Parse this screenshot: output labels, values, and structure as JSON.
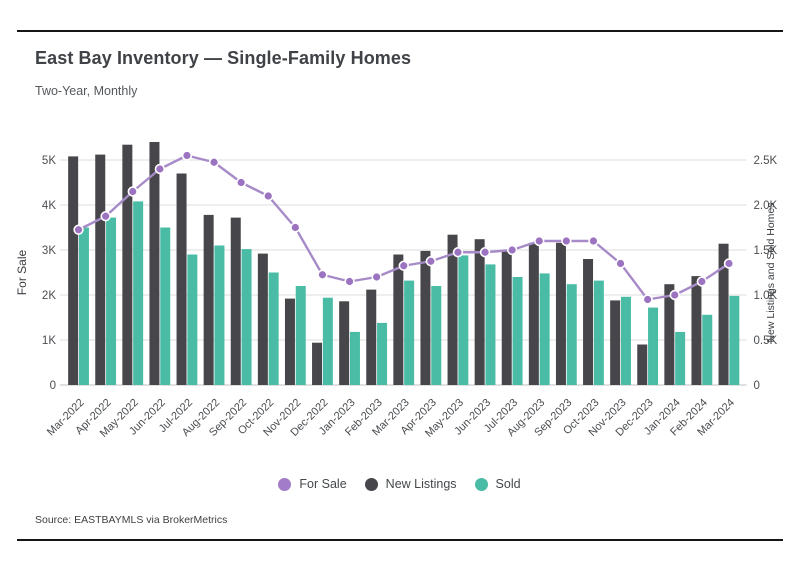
{
  "page": {
    "title": "East Bay Inventory — Single-Family Homes",
    "subtitle": "Two-Year, Monthly",
    "source": "Source:  EASTBAYMLS via BrokerMetrics"
  },
  "legend": {
    "items": [
      {
        "label": "For Sale",
        "color": "#a27cc9"
      },
      {
        "label": "New Listings",
        "color": "#47474b"
      },
      {
        "label": "Sold",
        "color": "#4abca6"
      }
    ]
  },
  "chart_data": {
    "type": "bar+line combo",
    "title": "East Bay Inventory — Single-Family Homes",
    "subtitle": "Two-Year, Monthly",
    "categories": [
      "Mar-2022",
      "Apr-2022",
      "May-2022",
      "Jun-2022",
      "Jul-2022",
      "Aug-2022",
      "Sep-2022",
      "Oct-2022",
      "Nov-2022",
      "Dec-2022",
      "Jan-2023",
      "Feb-2023",
      "Mar-2023",
      "Apr-2023",
      "May-2023",
      "Jun-2023",
      "Jul-2023",
      "Aug-2023",
      "Sep-2023",
      "Oct-2023",
      "Nov-2023",
      "Dec-2023",
      "Jan-2024",
      "Feb-2024",
      "Mar-2024"
    ],
    "series": [
      {
        "name": "For Sale",
        "type": "line",
        "axis": "left",
        "color_line": "#a78bc8",
        "color_marker": "#9b73c1",
        "values": [
          3450,
          3750,
          4300,
          4800,
          5100,
          4950,
          4500,
          4200,
          3500,
          2450,
          2300,
          2400,
          2650,
          2750,
          2950,
          2950,
          3000,
          3200,
          3200,
          3200,
          2700,
          1900,
          2000,
          2300,
          2700
        ]
      },
      {
        "name": "New Listings",
        "type": "bar",
        "axis": "right",
        "color": "#47474b",
        "values": [
          2540,
          2560,
          2670,
          2700,
          2350,
          1890,
          1860,
          1460,
          960,
          470,
          930,
          1060,
          1450,
          1490,
          1670,
          1620,
          1500,
          1580,
          1580,
          1400,
          940,
          450,
          1120,
          1210,
          1570
        ]
      },
      {
        "name": "Sold",
        "type": "bar",
        "axis": "right",
        "color": "#4abca6",
        "values": [
          1750,
          1860,
          2040,
          1750,
          1450,
          1550,
          1510,
          1250,
          1100,
          970,
          590,
          690,
          1160,
          1100,
          1440,
          1340,
          1200,
          1240,
          1120,
          1160,
          980,
          860,
          590,
          780,
          990
        ]
      }
    ],
    "left_axis": {
      "label": "For Sale",
      "min": 0,
      "max": 5000,
      "tick_labels": [
        "0",
        "1K",
        "2K",
        "3K",
        "4K",
        "5K"
      ],
      "tick_values": [
        0,
        1000,
        2000,
        3000,
        4000,
        5000
      ]
    },
    "right_axis": {
      "label": "New Listings and Sold Homes",
      "min": 0,
      "max": 2500,
      "tick_labels": [
        "0",
        "0.5K",
        "1.0K",
        "1.5K",
        "2.0K",
        "2.5K"
      ],
      "tick_values": [
        0,
        500,
        1000,
        1500,
        2000,
        2500
      ]
    },
    "grid": true,
    "legend_position": "bottom",
    "x_tick_rotation": -45
  }
}
